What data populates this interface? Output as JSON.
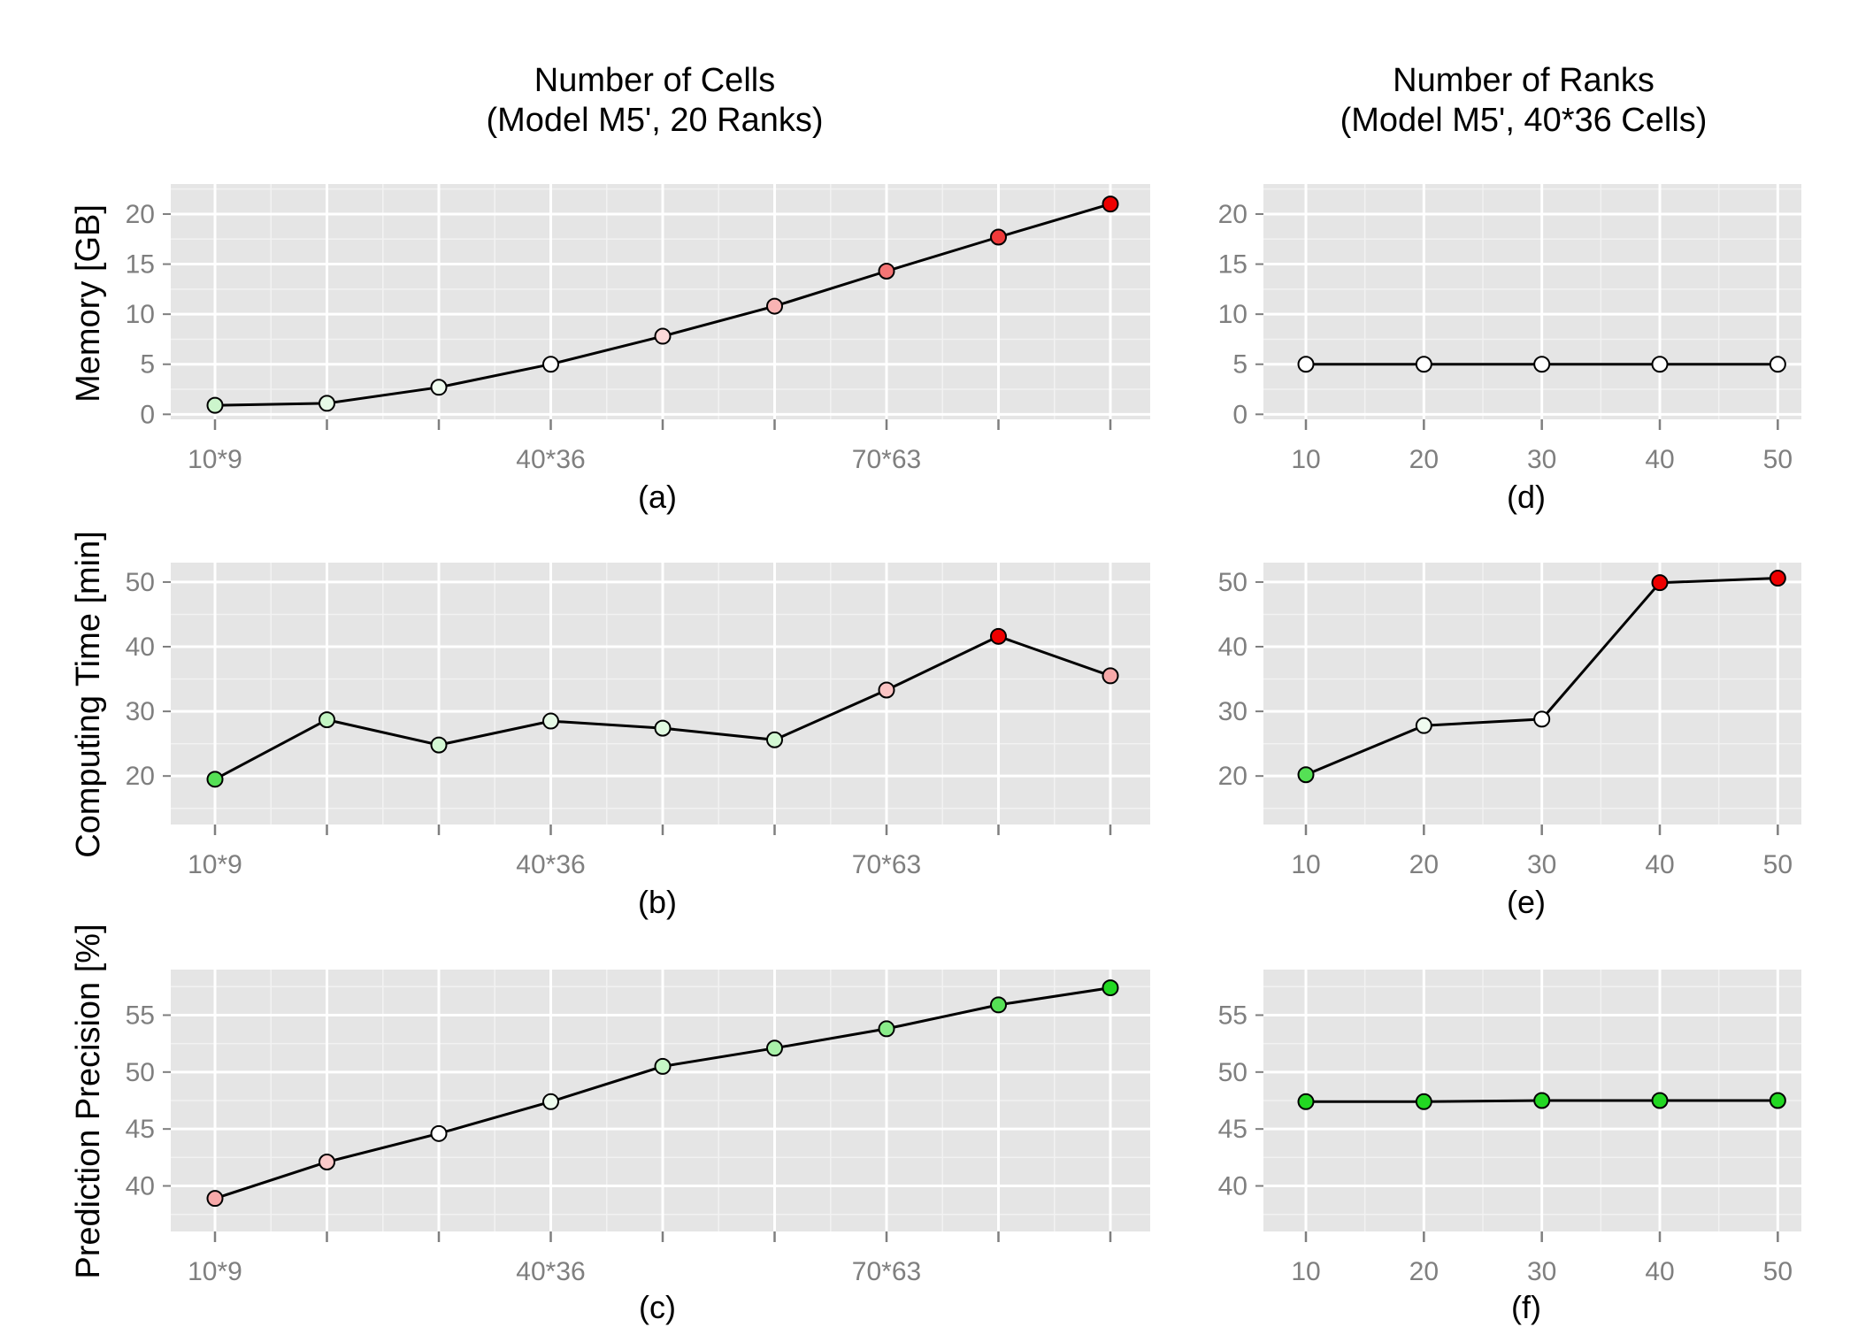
{
  "figure": {
    "col_titles": [
      {
        "line1": "Number of Cells",
        "line2": "(Model M5', 20 Ranks)"
      },
      {
        "line1": "Number of Ranks",
        "line2": "(Model M5', 40*36 Cells)"
      }
    ],
    "row_labels": [
      "Memory [GB]",
      "Computing Time [min]",
      "Prediction Precision [%]"
    ]
  },
  "colors": {
    "panel_bg": "#e5e5e5",
    "grid_major": "#ffffff",
    "grid_minor": "#f2f2f2",
    "line": "#000000",
    "tick_text": "#7f7f7f",
    "tick_mark": "#7f7f7f"
  },
  "chart_data": [
    {
      "panel": "(a)",
      "type": "line",
      "x_ticks": [
        "",
        "10*9",
        "",
        "",
        "40*36",
        "",
        "",
        "70*63",
        "",
        ""
      ],
      "y_ticks": [
        0,
        5,
        10,
        15,
        20
      ],
      "ylim": [
        -0.5,
        23
      ],
      "values": [
        0.9,
        1.1,
        2.7,
        5.0,
        7.8,
        10.8,
        14.3,
        17.7,
        21.0
      ],
      "point_colors": [
        "#ccf5cc",
        "#e6fae6",
        "#f0fcf0",
        "#ffffff",
        "#fdd9d9",
        "#f9b3b3",
        "#f57575",
        "#f03a3a",
        "#ee0000"
      ],
      "grid": true
    },
    {
      "panel": "(b)",
      "type": "line",
      "x_ticks": [
        "",
        "10*9",
        "",
        "",
        "40*36",
        "",
        "",
        "70*63",
        "",
        ""
      ],
      "y_ticks": [
        20,
        30,
        40,
        50
      ],
      "ylim": [
        12.5,
        53
      ],
      "values": [
        19.5,
        28.7,
        24.8,
        28.5,
        27.4,
        25.6,
        33.3,
        41.6,
        35.5
      ],
      "point_colors": [
        "#55e055",
        "#c3f5c3",
        "#d4f8d4",
        "#e6fae6",
        "#e0f9e0",
        "#d2f7d2",
        "#fbc4c4",
        "#ee0000",
        "#f7a9a9"
      ],
      "grid": true
    },
    {
      "panel": "(c)",
      "type": "line",
      "x_ticks": [
        "",
        "10*9",
        "",
        "",
        "40*36",
        "",
        "",
        "70*63",
        "",
        ""
      ],
      "y_ticks": [
        40,
        45,
        50,
        55
      ],
      "ylim": [
        36,
        59
      ],
      "values": [
        38.9,
        42.1,
        44.6,
        47.4,
        50.5,
        52.1,
        53.8,
        55.9,
        57.4
      ],
      "point_colors": [
        "#f7a9a9",
        "#fbcaca",
        "#ffffff",
        "#effcef",
        "#c6f6c6",
        "#a9f1a9",
        "#8aec8a",
        "#55e055",
        "#22d822"
      ],
      "grid": true
    },
    {
      "panel": "(d)",
      "type": "line",
      "x": [
        10,
        20,
        30,
        40,
        50
      ],
      "xlim": [
        6.4,
        52
      ],
      "y_ticks": [
        0,
        5,
        10,
        15,
        20
      ],
      "ylim": [
        -0.5,
        23
      ],
      "values": [
        5.0,
        5.0,
        5.0,
        5.0,
        5.0
      ],
      "point_colors": [
        "#ffffff",
        "#ffffff",
        "#ffffff",
        "#ffffff",
        "#ffffff"
      ],
      "grid": true
    },
    {
      "panel": "(e)",
      "type": "line",
      "x": [
        10,
        20,
        30,
        40,
        50
      ],
      "xlim": [
        6.4,
        52
      ],
      "y_ticks": [
        20,
        30,
        40,
        50
      ],
      "ylim": [
        12.5,
        53
      ],
      "values": [
        20.2,
        27.8,
        28.8,
        49.9,
        50.6
      ],
      "point_colors": [
        "#55e055",
        "#f0fcf0",
        "#ffffff",
        "#ee0000",
        "#ee0000"
      ],
      "grid": true
    },
    {
      "panel": "(f)",
      "type": "line",
      "x": [
        10,
        20,
        30,
        40,
        50
      ],
      "xlim": [
        6.4,
        52
      ],
      "y_ticks": [
        40,
        45,
        50,
        55
      ],
      "ylim": [
        36,
        59
      ],
      "values": [
        47.4,
        47.4,
        47.5,
        47.5,
        47.5
      ],
      "point_colors": [
        "#22d822",
        "#22d822",
        "#22d822",
        "#22d822",
        "#22d822"
      ],
      "grid": true
    }
  ]
}
